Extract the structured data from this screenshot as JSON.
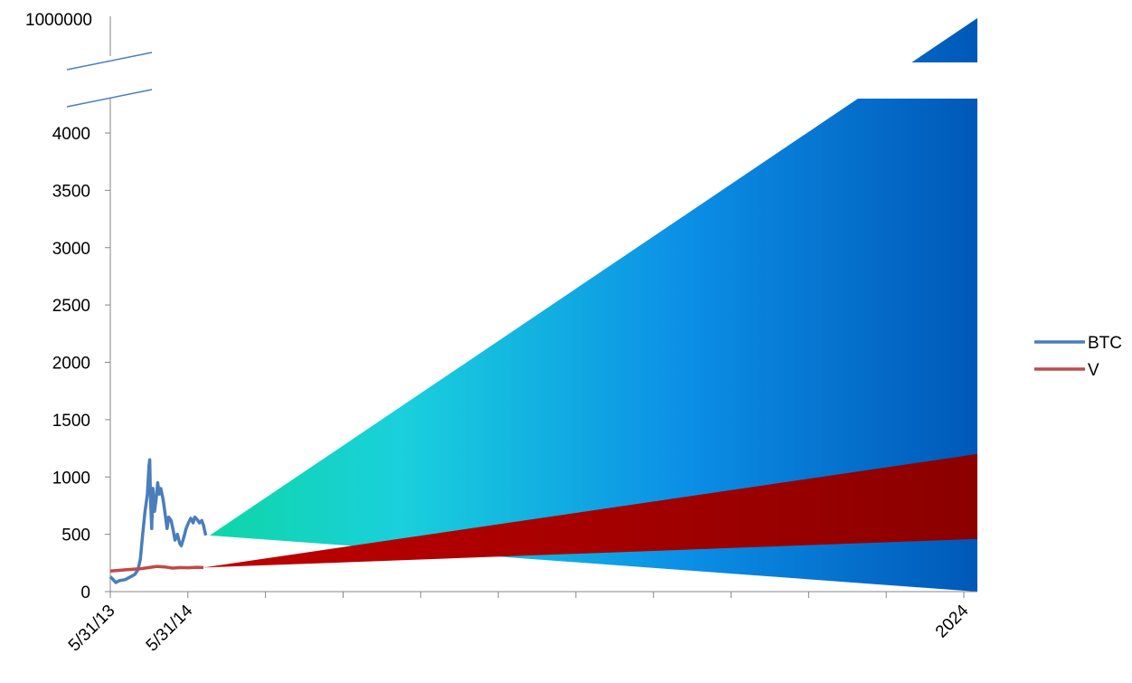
{
  "chart_data": {
    "type": "line",
    "y_axis": {
      "top_break_label": "1000000",
      "ticks": [
        0,
        500,
        1000,
        1500,
        2000,
        2500,
        3000,
        3500,
        4000
      ],
      "ylim": [
        0,
        4000
      ],
      "broken_axis": true
    },
    "x_axis": {
      "tick_labels": [
        {
          "index": 0,
          "label": "5/31/13"
        },
        {
          "index": 1,
          "label": "5/31/14"
        },
        {
          "index": 11,
          "label": "2024"
        }
      ],
      "tick_count": 12,
      "xlim_years": [
        2013.41,
        2024.4
      ]
    },
    "series": [
      {
        "name": "BTC",
        "color": "#4a7ebb",
        "points": [
          [
            2013.41,
            130
          ],
          [
            2013.44,
            110
          ],
          [
            2013.48,
            80
          ],
          [
            2013.52,
            95
          ],
          [
            2013.56,
            100
          ],
          [
            2013.6,
            105
          ],
          [
            2013.64,
            120
          ],
          [
            2013.68,
            135
          ],
          [
            2013.72,
            150
          ],
          [
            2013.76,
            190
          ],
          [
            2013.79,
            280
          ],
          [
            2013.82,
            500
          ],
          [
            2013.85,
            700
          ],
          [
            2013.88,
            850
          ],
          [
            2013.9,
            1100
          ],
          [
            2013.91,
            1150
          ],
          [
            2013.92,
            800
          ],
          [
            2013.935,
            550
          ],
          [
            2013.95,
            900
          ],
          [
            2013.97,
            700
          ],
          [
            2013.99,
            800
          ],
          [
            2014.01,
            950
          ],
          [
            2014.03,
            850
          ],
          [
            2014.05,
            900
          ],
          [
            2014.08,
            800
          ],
          [
            2014.11,
            650
          ],
          [
            2014.13,
            550
          ],
          [
            2014.15,
            650
          ],
          [
            2014.18,
            620
          ],
          [
            2014.2,
            560
          ],
          [
            2014.23,
            450
          ],
          [
            2014.26,
            500
          ],
          [
            2014.29,
            420
          ],
          [
            2014.31,
            400
          ],
          [
            2014.34,
            470
          ],
          [
            2014.37,
            550
          ],
          [
            2014.4,
            600
          ],
          [
            2014.43,
            640
          ],
          [
            2014.46,
            600
          ],
          [
            2014.48,
            650
          ],
          [
            2014.51,
            630
          ],
          [
            2014.54,
            600
          ],
          [
            2014.57,
            620
          ],
          [
            2014.59,
            580
          ],
          [
            2014.62,
            490
          ]
        ]
      },
      {
        "name": "V",
        "color": "#be4b48",
        "points": [
          [
            2013.41,
            180
          ],
          [
            2013.5,
            185
          ],
          [
            2013.6,
            190
          ],
          [
            2013.7,
            195
          ],
          [
            2013.8,
            200
          ],
          [
            2013.9,
            210
          ],
          [
            2014.0,
            220
          ],
          [
            2014.1,
            215
          ],
          [
            2014.2,
            205
          ],
          [
            2014.3,
            210
          ],
          [
            2014.4,
            208
          ],
          [
            2014.5,
            212
          ],
          [
            2014.59,
            210
          ]
        ]
      }
    ],
    "projections": [
      {
        "series": "BTC",
        "start": [
          2014.67,
          490
        ],
        "end_year": 2024.4,
        "upper_end": "1000000",
        "lower_end": 0
      },
      {
        "series": "V",
        "start": [
          2014.59,
          210
        ],
        "end_year": 2024.4,
        "upper_end": 1200,
        "lower_end": 460
      }
    ],
    "legend": {
      "placement": "right",
      "entries": [
        "BTC",
        "V"
      ]
    },
    "grid": false
  }
}
